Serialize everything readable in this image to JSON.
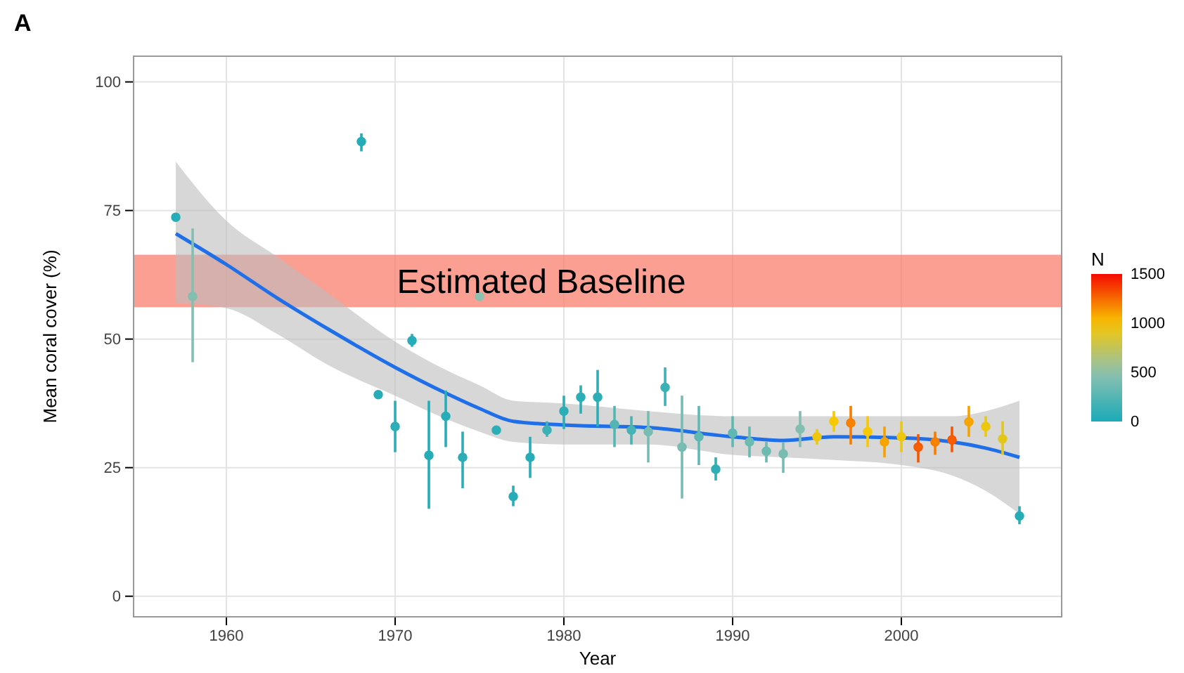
{
  "chart_data": {
    "type": "scatter",
    "title": "A",
    "xlabel": "Year",
    "ylabel": "Mean coral cover (%)",
    "clabel": "N",
    "xlim": [
      1954.5,
      2009.5
    ],
    "xticks": [
      1960,
      1970,
      1980,
      1990,
      2000
    ],
    "ylim": [
      -4,
      105
    ],
    "yticks": [
      0,
      25,
      50,
      75,
      100
    ],
    "grid": true,
    "marker": "circle",
    "clim": [
      0,
      1500
    ],
    "cticks": [
      0,
      500,
      1000,
      1500
    ],
    "bands": [
      {
        "axis": "y",
        "from": 56.2,
        "to": 66.4,
        "label": "Estimated Baseline",
        "color": "#fa7f6f"
      }
    ],
    "series": [
      {
        "type": "line",
        "marker": "none",
        "color": "#1f6fe8",
        "x": [
          1957,
          1960,
          1963,
          1966,
          1970,
          1973,
          1975,
          1977,
          1980,
          1985,
          1990,
          1993,
          1996,
          2000,
          2003,
          2005,
          2007
        ],
        "values": [
          70.5,
          64.5,
          58,
          52,
          44.5,
          39.5,
          36.5,
          34,
          33.3,
          32.8,
          31,
          30.3,
          31,
          30.8,
          30,
          28.8,
          27
        ],
        "lower": [
          57,
          56,
          51,
          45,
          39,
          34.5,
          32,
          30,
          29.5,
          29.5,
          27.5,
          27,
          26.5,
          25.5,
          23.5,
          20.5,
          16
        ],
        "upper": [
          84.5,
          73,
          66,
          59,
          49.5,
          44,
          41,
          38,
          37.5,
          36,
          35,
          35,
          35,
          35,
          35,
          36,
          38
        ]
      },
      {
        "type": "scatter",
        "x": [
          1957,
          1958,
          1968,
          1969,
          1970,
          1971,
          1972,
          1973,
          1974,
          1975,
          1976,
          1977,
          1978,
          1979,
          1980,
          1981,
          1982,
          1983,
          1984,
          1985,
          1986,
          1987,
          1988,
          1989,
          1990,
          1991,
          1992,
          1993,
          1994,
          1995,
          1996,
          1997,
          1998,
          1999,
          2000,
          2001,
          2002,
          2003,
          2004,
          2005,
          2006,
          2007
        ],
        "values": [
          73.7,
          58.3,
          88.4,
          39.2,
          33,
          49.7,
          27.4,
          35,
          27,
          58.3,
          32.3,
          19.4,
          27,
          32.3,
          36,
          38.7,
          38.7,
          33.4,
          32.3,
          32,
          40.6,
          29,
          31,
          24.7,
          31.7,
          30,
          28.2,
          27.7,
          32.5,
          31,
          34,
          33.7,
          32,
          30,
          31,
          29,
          30,
          30.4,
          33.9,
          33,
          30.6,
          15.6
        ],
        "errors": [
          null,
          [
            45.5,
            71.5
          ],
          [
            86.5,
            90
          ],
          [
            38.5,
            40
          ],
          [
            28,
            38
          ],
          [
            48.5,
            51
          ],
          [
            17,
            38
          ],
          [
            29,
            40
          ],
          [
            21,
            32
          ],
          null,
          null,
          [
            17.5,
            21.5
          ],
          [
            23,
            31
          ],
          [
            31,
            34
          ],
          [
            32.5,
            39
          ],
          [
            35.5,
            41
          ],
          [
            33,
            44
          ],
          [
            29,
            37
          ],
          [
            29.5,
            35
          ],
          [
            26,
            36
          ],
          [
            37,
            44.5
          ],
          [
            19,
            39
          ],
          [
            25.5,
            37
          ],
          [
            22.5,
            27
          ],
          [
            29,
            35
          ],
          [
            27,
            33
          ],
          [
            26,
            30
          ],
          [
            24,
            30
          ],
          [
            29,
            36
          ],
          [
            29.5,
            32.5
          ],
          [
            32,
            36
          ],
          [
            29.5,
            37
          ],
          [
            29,
            35
          ],
          [
            27,
            33
          ],
          [
            28,
            34
          ],
          [
            26,
            31.5
          ],
          [
            27.5,
            32
          ],
          [
            28,
            33
          ],
          [
            31,
            37
          ],
          [
            31,
            35
          ],
          [
            27.5,
            34
          ],
          [
            14,
            17.5
          ]
        ],
        "colors": [
          "#27adb7",
          "#83beb1",
          "#24adb7",
          "#27adb7",
          "#2caeb7",
          "#27adb7",
          "#24adb7",
          "#27adb7",
          "#2caeb7",
          "#8ec0b0",
          "#2caeb7",
          "#27adb7",
          "#27adb7",
          "#3bb1b5",
          "#2caeb7",
          "#2caeb7",
          "#2caeb7",
          "#54b5b4",
          "#47b3b5",
          "#78bcb2",
          "#3bb1b5",
          "#78bcb2",
          "#60b8b3",
          "#30aeb6",
          "#60b8b3",
          "#6cbab2",
          "#6cbab2",
          "#78bcb2",
          "#83beb1",
          "#eec70b",
          "#f8c800",
          "#f78200",
          "#f8c800",
          "#f7a500",
          "#eec70b",
          "#f65e00",
          "#f78200",
          "#f65e00",
          "#f7a500",
          "#eec70b",
          "#e4c615",
          "#25adb7"
        ],
        "cvalues": [
          60,
          450,
          40,
          60,
          80,
          60,
          40,
          60,
          80,
          500,
          80,
          60,
          60,
          150,
          80,
          80,
          80,
          250,
          200,
          400,
          150,
          400,
          300,
          100,
          300,
          350,
          350,
          400,
          450,
          950,
          1000,
          1200,
          1000,
          1100,
          950,
          1300,
          1200,
          1300,
          1100,
          950,
          900,
          50
        ]
      }
    ]
  }
}
